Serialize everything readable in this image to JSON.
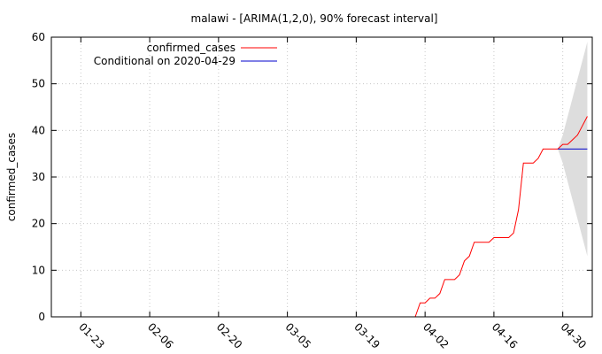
{
  "chart_data": {
    "type": "line",
    "title": "malawi -  [ARIMA(1,2,0), 90% forecast interval]",
    "ylabel": "confirmed_cases",
    "xlabel": "",
    "ylim": [
      0,
      60
    ],
    "yticks": [
      0,
      10,
      20,
      30,
      40,
      50,
      60
    ],
    "xlim": [
      "2020-01-17",
      "2020-05-06"
    ],
    "xticks": [
      "01-23",
      "02-06",
      "02-20",
      "03-05",
      "03-19",
      "04-02",
      "04-16",
      "04-30"
    ],
    "xtick_dates": [
      "2020-01-23",
      "2020-02-06",
      "2020-02-20",
      "2020-03-05",
      "2020-03-19",
      "2020-04-02",
      "2020-04-16",
      "2020-04-30"
    ],
    "grid": true,
    "legend": "top-left",
    "series": [
      {
        "name": "confirmed_cases",
        "color": "#ff0000",
        "x": [
          "2020-03-31",
          "2020-04-01",
          "2020-04-02",
          "2020-04-03",
          "2020-04-04",
          "2020-04-05",
          "2020-04-06",
          "2020-04-07",
          "2020-04-08",
          "2020-04-09",
          "2020-04-10",
          "2020-04-11",
          "2020-04-12",
          "2020-04-13",
          "2020-04-14",
          "2020-04-15",
          "2020-04-16",
          "2020-04-17",
          "2020-04-18",
          "2020-04-19",
          "2020-04-20",
          "2020-04-21",
          "2020-04-22",
          "2020-04-23",
          "2020-04-24",
          "2020-04-25",
          "2020-04-26",
          "2020-04-27",
          "2020-04-28",
          "2020-04-29",
          "2020-04-30",
          "2020-05-01",
          "2020-05-02",
          "2020-05-03",
          "2020-05-04",
          "2020-05-05"
        ],
        "values": [
          0,
          3,
          3,
          4,
          4,
          5,
          8,
          8,
          8,
          9,
          12,
          13,
          16,
          16,
          16,
          16,
          17,
          17,
          17,
          17,
          18,
          23,
          33,
          33,
          33,
          34,
          36,
          36,
          36,
          36,
          37,
          37,
          38,
          39,
          41,
          43
        ]
      },
      {
        "name": "Conditional on 2020-04-29",
        "color": "#0000cc",
        "x": [
          "2020-04-29",
          "2020-05-05"
        ],
        "values": [
          36,
          36
        ]
      }
    ],
    "forecast_interval": {
      "color": "#dddddd",
      "x": [
        "2020-04-29",
        "2020-04-30",
        "2020-05-01",
        "2020-05-02",
        "2020-05-03",
        "2020-05-04",
        "2020-05-05"
      ],
      "lower": [
        36,
        33,
        29,
        25,
        21,
        17,
        13
      ],
      "upper": [
        36,
        39,
        43,
        47,
        51,
        55,
        59
      ]
    }
  }
}
